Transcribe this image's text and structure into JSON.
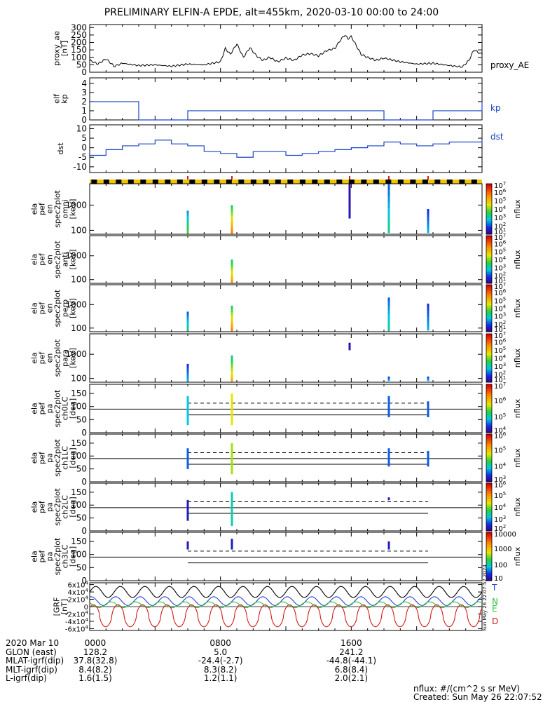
{
  "title": "PRELIMINARY ELFIN-A EPDE, alt=455km, 2020-03-10 00:00 to 24:00",
  "colors": {
    "axis": "#000000",
    "kp": "#1a44c6",
    "dst": "#1a44c6",
    "grf_T": "#000000",
    "grf_N": "#1f3fd6",
    "grf_E": "#2ec43a",
    "grf_D": "#d01b1b",
    "label_T": "#1f3fd6",
    "label_N": "#2ec43a",
    "label_D": "#d01b1b",
    "ae_line": "#000000"
  },
  "chart_data": [
    {
      "id": "proxy_ae",
      "type": "line",
      "ylabel_lines": [
        "proxy_ae",
        "[nT]"
      ],
      "side_label": "proxy_AE",
      "ylim": [
        0,
        320
      ],
      "yticks": [
        0,
        50,
        100,
        150,
        200,
        250,
        300
      ],
      "x_hours": [
        0,
        0.5,
        1,
        1.5,
        2,
        3,
        4,
        5,
        6,
        7,
        8,
        8.3,
        8.6,
        9,
        9.4,
        9.8,
        10.2,
        10.6,
        11,
        11.5,
        12,
        12.5,
        13,
        13.5,
        14,
        14.5,
        15,
        15.3,
        15.6,
        15.8,
        16,
        16.3,
        16.6,
        17,
        17.5,
        18,
        19,
        20,
        21,
        22,
        22.8,
        23.2,
        23.5,
        24
      ],
      "values": [
        80,
        55,
        90,
        40,
        60,
        45,
        50,
        40,
        55,
        50,
        70,
        160,
        120,
        190,
        100,
        165,
        110,
        80,
        100,
        70,
        95,
        80,
        115,
        125,
        110,
        145,
        160,
        210,
        250,
        225,
        240,
        180,
        120,
        100,
        80,
        95,
        70,
        55,
        60,
        45,
        35,
        80,
        150,
        120
      ]
    },
    {
      "id": "kp",
      "type": "step",
      "ylabel_lines": [
        "elf",
        "kp"
      ],
      "side_label": "kp",
      "ylim": [
        0,
        4.6
      ],
      "yticks": [
        0,
        1,
        2,
        3,
        4
      ],
      "x_hours": [
        0,
        3,
        6,
        9,
        12,
        15,
        18,
        21,
        24
      ],
      "values": [
        2,
        0,
        1,
        1,
        1,
        1,
        0,
        1,
        2
      ]
    },
    {
      "id": "dst",
      "type": "step",
      "ylabel_lines": [
        "dst"
      ],
      "side_label": "dst",
      "ylim": [
        -13,
        12
      ],
      "yticks": [
        -10,
        -5,
        0,
        5,
        10
      ],
      "x_hours": [
        0,
        1,
        2,
        3,
        4,
        5,
        6,
        7,
        8,
        9,
        10,
        11,
        12,
        13,
        14,
        15,
        16,
        17,
        18,
        19,
        20,
        21,
        22,
        23,
        24
      ],
      "values": [
        -4,
        -1,
        1,
        2,
        4,
        2,
        1,
        -2,
        -3,
        -5,
        -2,
        -2,
        -4,
        -3,
        -2,
        -1,
        0,
        1,
        3,
        2,
        1,
        2,
        3,
        3,
        4
      ]
    },
    {
      "id": "omni",
      "type": "spectrogram",
      "ylabel_lines": [
        "ela",
        "pef",
        "en",
        "spec2plot",
        "omni",
        "[keV]"
      ],
      "ylim_log": [
        70,
        7000
      ],
      "yticks": [
        100,
        1000
      ],
      "ytick_labels": [
        "100",
        "1000"
      ],
      "cbar_labels": [
        "10^7",
        "10^6",
        "10^5",
        "10^4",
        "10^3",
        "10^2",
        "10^1"
      ],
      "cbar_title": "nflux",
      "events": [
        {
          "t": 6.0,
          "emin": 80,
          "emax": 600,
          "level": 0.5
        },
        {
          "t": 8.7,
          "emin": 75,
          "emax": 1000,
          "level": 0.85
        },
        {
          "t": 15.9,
          "emin": 300,
          "emax": 7000,
          "level": 0.1
        },
        {
          "t": 18.3,
          "emin": 80,
          "emax": 8000,
          "level": 0.4
        },
        {
          "t": 20.7,
          "emin": 80,
          "emax": 700,
          "level": 0.3
        }
      ]
    },
    {
      "id": "anti",
      "type": "spectrogram",
      "ylabel_lines": [
        "ela",
        "pef",
        "en",
        "spec2plot",
        "anti",
        "[keV]"
      ],
      "ylim_log": [
        70,
        7000
      ],
      "yticks": [
        100,
        1000
      ],
      "ytick_labels": [
        "100",
        "1000"
      ],
      "cbar_labels": [
        "10^7",
        "10^6",
        "10^5",
        "10^4",
        "10^3",
        "10^2",
        "10^1"
      ],
      "cbar_title": "nflux",
      "events": [
        {
          "t": 8.7,
          "emin": 75,
          "emax": 700,
          "level": 0.8
        }
      ]
    },
    {
      "id": "perp",
      "type": "spectrogram",
      "ylabel_lines": [
        "ela",
        "pef",
        "en",
        "spec2plot",
        "perp",
        "[keV]"
      ],
      "ylim_log": [
        70,
        7000
      ],
      "yticks": [
        100,
        1000
      ],
      "ytick_labels": [
        "100",
        "1000"
      ],
      "cbar_labels": [
        "10^7",
        "10^6",
        "10^5",
        "10^4",
        "10^3",
        "10^2",
        "10^1"
      ],
      "cbar_title": "nflux",
      "events": [
        {
          "t": 6.0,
          "emin": 75,
          "emax": 500,
          "level": 0.4
        },
        {
          "t": 8.7,
          "emin": 75,
          "emax": 900,
          "level": 0.85
        },
        {
          "t": 18.3,
          "emin": 75,
          "emax": 2000,
          "level": 0.4
        },
        {
          "t": 20.7,
          "emin": 80,
          "emax": 1100,
          "level": 0.3
        }
      ]
    },
    {
      "id": "para",
      "type": "spectrogram",
      "ylabel_lines": [
        "ela",
        "pef",
        "en",
        "spec2plot",
        "para",
        "[keV]"
      ],
      "ylim_log": [
        70,
        7000
      ],
      "yticks": [
        100,
        1000
      ],
      "ytick_labels": [
        "100",
        "1000"
      ],
      "cbar_labels": [
        "10^7",
        "10^6",
        "10^5",
        "10^4",
        "10^3",
        "10^2",
        "10^1"
      ],
      "cbar_title": "nflux",
      "events": [
        {
          "t": 6.0,
          "emin": 75,
          "emax": 400,
          "level": 0.3
        },
        {
          "t": 8.7,
          "emin": 75,
          "emax": 900,
          "level": 0.75
        },
        {
          "t": 15.9,
          "emin": 1500,
          "emax": 3000,
          "level": 0.1
        },
        {
          "t": 18.3,
          "emin": 80,
          "emax": 120,
          "level": 0.3
        },
        {
          "t": 20.7,
          "emin": 80,
          "emax": 120,
          "level": 0.3
        }
      ]
    },
    {
      "id": "ch0LC",
      "type": "pitch",
      "ylabel_lines": [
        "ela",
        "pef",
        "pa",
        "spec2plot",
        "ch0LC",
        "[deg]"
      ],
      "ylim": [
        0,
        185
      ],
      "yticks": [
        0,
        50,
        100,
        150
      ],
      "cbar_labels": [
        "10^7",
        "10^6",
        "10^5",
        "10^4"
      ],
      "cbar_title": "nflux",
      "lc_solid": 68,
      "lc_dashed": 113,
      "half": 90,
      "segments": [
        [
          6.0,
          8.7
        ],
        [
          8.7,
          18.3
        ],
        [
          18.3,
          20.7
        ]
      ],
      "events": [
        {
          "t": 6.0,
          "amin": 30,
          "amax": 140,
          "level": 0.3
        },
        {
          "t": 8.7,
          "amin": 30,
          "amax": 150,
          "level": 0.6
        },
        {
          "t": 18.3,
          "amin": 60,
          "amax": 140,
          "level": 0.2
        },
        {
          "t": 20.7,
          "amin": 60,
          "amax": 120,
          "level": 0.2
        }
      ]
    },
    {
      "id": "ch1LC",
      "type": "pitch",
      "ylabel_lines": [
        "ela",
        "pef",
        "pa",
        "spec2plot",
        "ch1LC",
        "[deg]"
      ],
      "ylim": [
        0,
        185
      ],
      "yticks": [
        0,
        50,
        100,
        150
      ],
      "cbar_labels": [
        "10^6",
        "10^5",
        "10^4",
        "10^3"
      ],
      "cbar_title": "nflux",
      "lc_solid": 68,
      "lc_dashed": 113,
      "half": 90,
      "segments": [
        [
          6.0,
          8.7
        ],
        [
          8.7,
          18.3
        ],
        [
          18.3,
          20.7
        ]
      ],
      "events": [
        {
          "t": 6.0,
          "amin": 50,
          "amax": 130,
          "level": 0.2
        },
        {
          "t": 8.7,
          "amin": 30,
          "amax": 150,
          "level": 0.55
        },
        {
          "t": 18.3,
          "amin": 60,
          "amax": 130,
          "level": 0.2
        },
        {
          "t": 20.7,
          "amin": 60,
          "amax": 120,
          "level": 0.2
        }
      ]
    },
    {
      "id": "ch2LC",
      "type": "pitch",
      "ylabel_lines": [
        "ela",
        "pef",
        "pa",
        "spec2plot",
        "ch2LC",
        "[deg]"
      ],
      "ylim": [
        0,
        185
      ],
      "yticks": [
        0,
        50,
        100,
        150
      ],
      "cbar_labels": [
        "10^6",
        "10^5",
        "10^4",
        "10^3",
        "10^2"
      ],
      "cbar_title": "nflux",
      "lc_solid": 68,
      "lc_dashed": 113,
      "half": 90,
      "segments": [
        [
          6.0,
          8.7
        ],
        [
          8.7,
          15.9
        ],
        [
          15.9,
          20.7
        ]
      ],
      "events": [
        {
          "t": 6.0,
          "amin": 40,
          "amax": 120,
          "level": 0.1
        },
        {
          "t": 8.7,
          "amin": 20,
          "amax": 150,
          "level": 0.35
        },
        {
          "t": 18.3,
          "amin": 120,
          "amax": 130,
          "level": 0.1
        }
      ]
    },
    {
      "id": "ch3LC",
      "type": "pitch",
      "ylabel_lines": [
        "ela",
        "pef",
        "pa",
        "spec2plot",
        "ch3LC",
        "[deg]"
      ],
      "ylim": [
        0,
        185
      ],
      "yticks": [
        0,
        50,
        100,
        150
      ],
      "cbar_labels": [
        "10000",
        "1000",
        "100",
        "10"
      ],
      "cbar_title": "nflux",
      "lc_solid": 68,
      "lc_dashed": 113,
      "half": 90,
      "segments": [
        [
          6.0,
          8.7
        ],
        [
          8.7,
          15.9
        ],
        [
          15.9,
          20.7
        ]
      ],
      "events": [
        {
          "t": 6.0,
          "amin": 120,
          "amax": 150,
          "level": 0.1
        },
        {
          "t": 8.7,
          "amin": 120,
          "amax": 160,
          "level": 0.1
        },
        {
          "t": 18.3,
          "amin": 120,
          "amax": 150,
          "level": 0.1
        }
      ]
    },
    {
      "id": "grf",
      "type": "line",
      "ylabel_lines": [
        "[GRF",
        "[nT]"
      ],
      "ylim": [
        -65000,
        65000
      ],
      "yticks": [
        -60000,
        -40000,
        -20000,
        0,
        20000,
        40000,
        60000
      ],
      "ytick_labels": [
        "-6x10^4",
        "-4x10^4",
        "-2x10^4",
        "0",
        "2x10^4",
        "4x10^4",
        "6x10^4"
      ],
      "orbit_period_hours": 1.5,
      "series_labels": [
        "T",
        "N",
        "E",
        "D"
      ],
      "series": [
        {
          "name": "T",
          "mean": 40000,
          "amp": 15000
        },
        {
          "name": "N",
          "mean": 15000,
          "amp": 12000
        },
        {
          "name": "E",
          "mean": 5000,
          "amp": 8000
        },
        {
          "name": "D",
          "mean": -25000,
          "amp": 30000
        }
      ]
    }
  ],
  "xaxis": {
    "tick_labels": [
      "0000",
      "0800",
      "1600"
    ],
    "tick_hours": [
      0,
      8,
      16
    ]
  },
  "footer": {
    "rows": [
      {
        "label": "2020 Mar 10",
        "v1": "0000",
        "v2": "0800",
        "v3": "1600"
      },
      {
        "label": "GLON (east)",
        "v1": "128.2",
        "v2": "5.0",
        "v3": "241.2"
      },
      {
        "label": "MLAT-igrf(dip)",
        "v1": "37.8(32.8)",
        "v2": "-24.4(-2.7)",
        "v3": "-44.8(-44.1)"
      },
      {
        "label": "MLT-igrf(dip)",
        "v1": "8.4(8.2)",
        "v2": "8.3(8.2)",
        "v3": "6.8(8.4)"
      },
      {
        "label": "L-igrf(dip)",
        "v1": "1.6(1.5)",
        "v2": "1.2(1.1)",
        "v3": "2.0(2.1)"
      }
    ],
    "units_note": "nflux: #/(cm^2 s sr MeV)",
    "created": "Created: Sun May 26 22:07:52 2024",
    "side_stamp": "Sun May 26 22:07:52 2024"
  }
}
